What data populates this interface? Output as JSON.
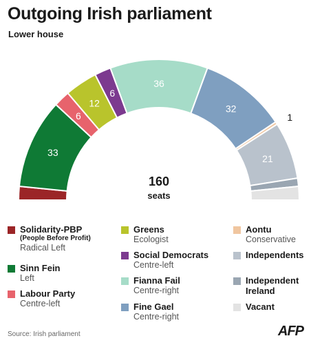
{
  "title": "Outgoing Irish parliament",
  "subtitle": "Lower house",
  "center": {
    "number": "160",
    "label": "seats"
  },
  "source": "Source: Irish parliament",
  "logo": "AFP",
  "chart_data": {
    "type": "semicircle-donut",
    "total": 160,
    "series": [
      {
        "name": "Solidarity-PBP",
        "seats": 5,
        "color": "#9b2527"
      },
      {
        "name": "Sinn Fein",
        "seats": 33,
        "color": "#0f7a35"
      },
      {
        "name": "Labour Party",
        "seats": 6,
        "color": "#e7636c"
      },
      {
        "name": "Greens",
        "seats": 12,
        "color": "#b9c42c"
      },
      {
        "name": "Social Democrats",
        "seats": 6,
        "color": "#7c3a8f"
      },
      {
        "name": "Fianna Fail",
        "seats": 36,
        "color": "#a6dcc8"
      },
      {
        "name": "Fine Gael",
        "seats": 32,
        "color": "#7f9fc0"
      },
      {
        "name": "Aontu",
        "seats": 1,
        "color": "#f0c6a0"
      },
      {
        "name": "Independents",
        "seats": 21,
        "color": "#b9c2cc"
      },
      {
        "name": "Independent Ireland",
        "seats": 3,
        "color": "#9aa6b2"
      },
      {
        "name": "Vacant",
        "seats": 5,
        "color": "#e3e3e3"
      }
    ]
  },
  "legend": [
    {
      "name": "Solidarity-PBP",
      "note": "(People Before Profit)",
      "sub": "Radical Left",
      "color": "#9b2527"
    },
    {
      "name": "Sinn Fein",
      "sub": "Left",
      "color": "#0f7a35"
    },
    {
      "name": "Labour Party",
      "sub": "Centre-left",
      "color": "#e7636c"
    },
    {
      "name": "Greens",
      "sub": "Ecologist",
      "color": "#b9c42c"
    },
    {
      "name": "Social Democrats",
      "sub": "Centre-left",
      "color": "#7c3a8f"
    },
    {
      "name": "Fianna Fail",
      "sub": "Centre-right",
      "color": "#a6dcc8"
    },
    {
      "name": "Fine Gael",
      "sub": "Centre-right",
      "color": "#7f9fc0"
    },
    {
      "name": "Aontu",
      "sub": "Conservative",
      "color": "#f0c6a0"
    },
    {
      "name": "Independents",
      "color": "#b9c2cc"
    },
    {
      "name": "Independent Ireland",
      "color": "#9aa6b2"
    },
    {
      "name": "Vacant",
      "color": "#e3e3e3"
    }
  ]
}
